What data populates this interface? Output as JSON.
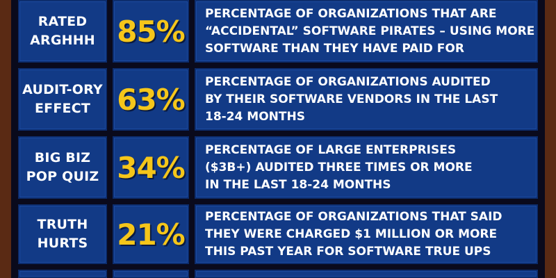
{
  "rows": [
    {
      "category_lines": [
        "RATED",
        "ARGHHH"
      ],
      "value": "85%",
      "description_lines": [
        "PERCENTAGE OF ORGANIZATIONS THAT ARE",
        "“ACCIDENTAL” SOFTWARE PIRATES – USING MORE",
        "SOFTWARE THAN THEY HAVE PAID FOR"
      ]
    },
    {
      "category_lines": [
        "AUDIT-ORY",
        "EFFECT"
      ],
      "value": "63%",
      "description_lines": [
        "PERCENTAGE OF ORGANIZATIONS AUDITED",
        "BY THEIR SOFTWARE VENDORS IN THE LAST",
        "18-24 MONTHS"
      ]
    },
    {
      "category_lines": [
        "BIG BIZ",
        "POP QUIZ"
      ],
      "value": "34%",
      "description_lines": [
        "PERCENTAGE OF LARGE ENTERPRISES",
        "($3B+) AUDITED THREE TIMES OR MORE",
        "IN THE LAST 18-24 MONTHS"
      ]
    },
    {
      "category_lines": [
        "TRUTH",
        "HURTS"
      ],
      "value": "21%",
      "description_lines": [
        "PERCENTAGE OF ORGANIZATIONS THAT SAID",
        "THEY WERE CHARGED $1 MILLION OR MORE",
        "THIS PAST YEAR FOR SOFTWARE TRUE UPS"
      ]
    }
  ],
  "colors": {
    "frame": "#5a2a14",
    "cell_bg": "#123a86",
    "value_text": "#f5c61a",
    "label_text": "#ffffff"
  }
}
